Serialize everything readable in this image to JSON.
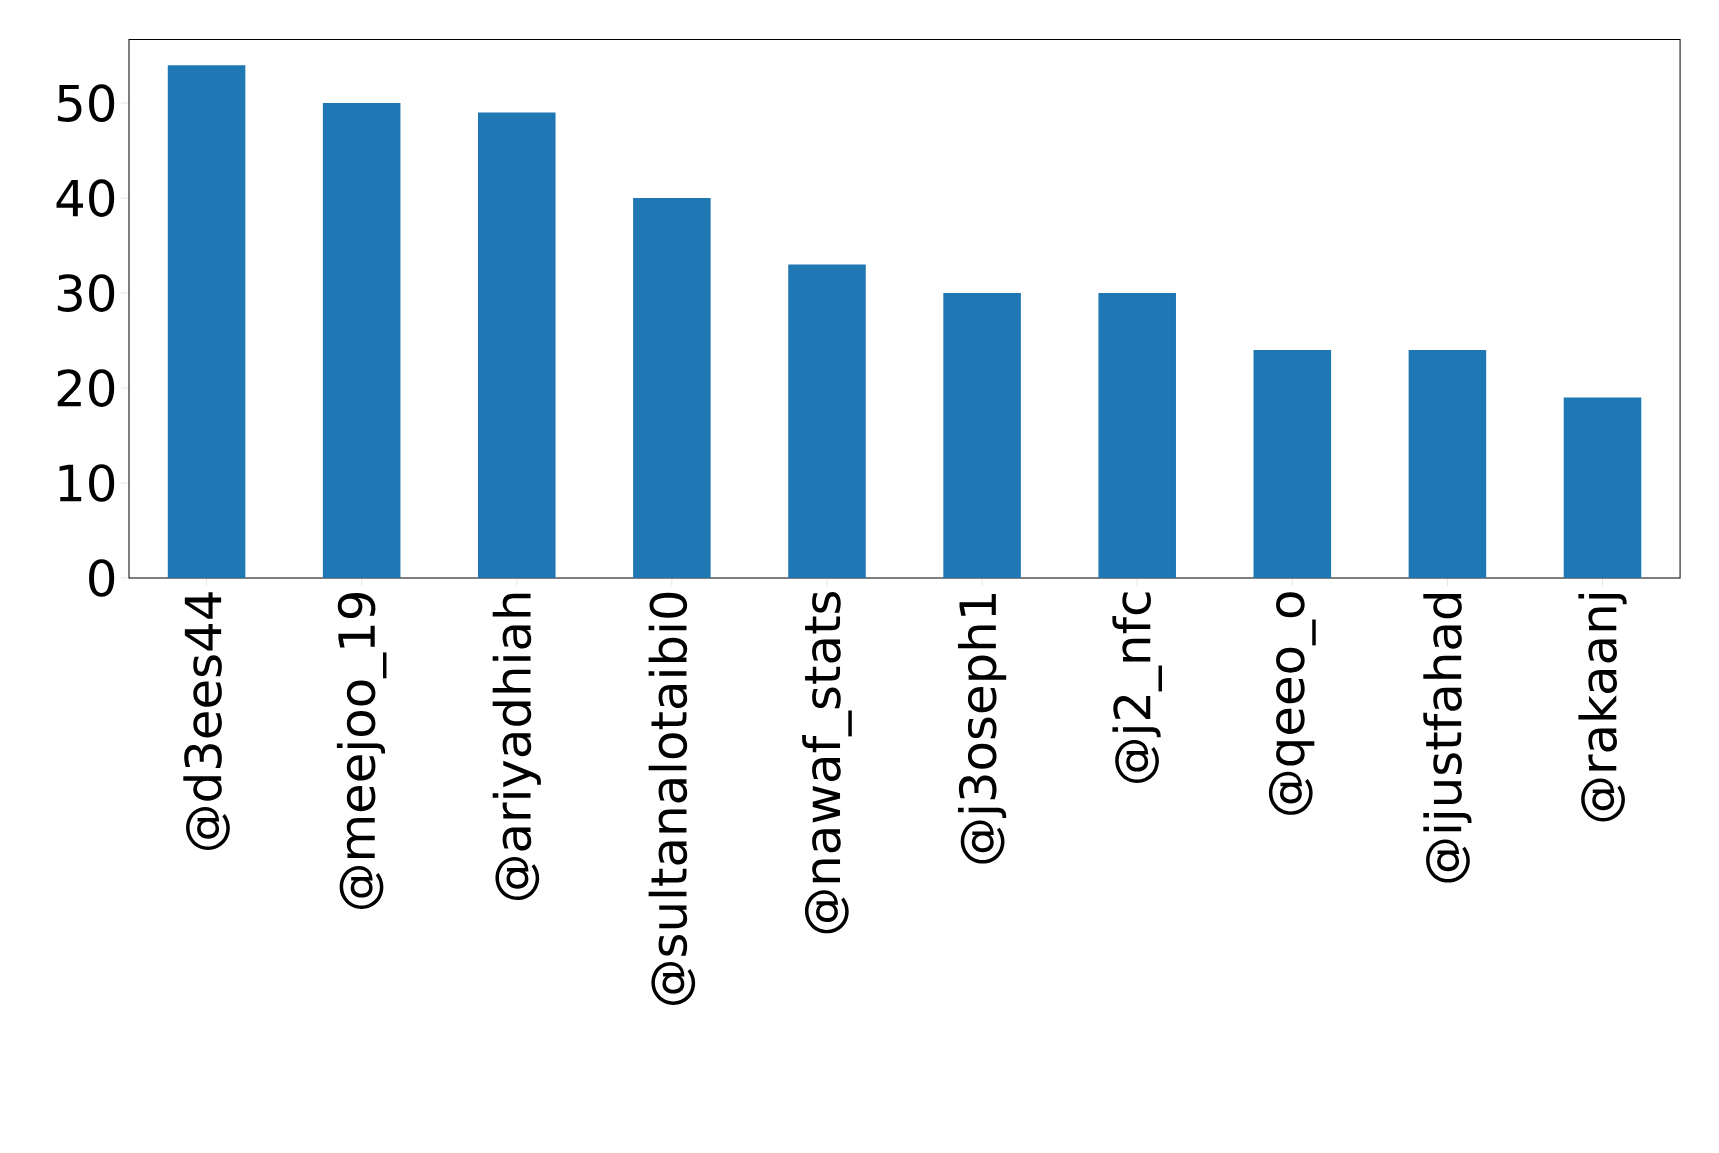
{
  "chart_data": {
    "type": "bar",
    "categories": [
      "@d3ees44",
      "@meejoo_19",
      "@ariyadhiah",
      "@sultanalotaibi0",
      "@nawaf_stats",
      "@j3oseph1",
      "@j2_nfc",
      "@qeeo_o",
      "@ijustfahad",
      "@rakaanj"
    ],
    "values": [
      54,
      50,
      49,
      40,
      33,
      30,
      30,
      24,
      24,
      19
    ],
    "color": "#1f77b4",
    "ylim": [
      0,
      56.7
    ],
    "yticks": [
      0,
      10,
      20,
      30,
      40,
      50
    ]
  }
}
